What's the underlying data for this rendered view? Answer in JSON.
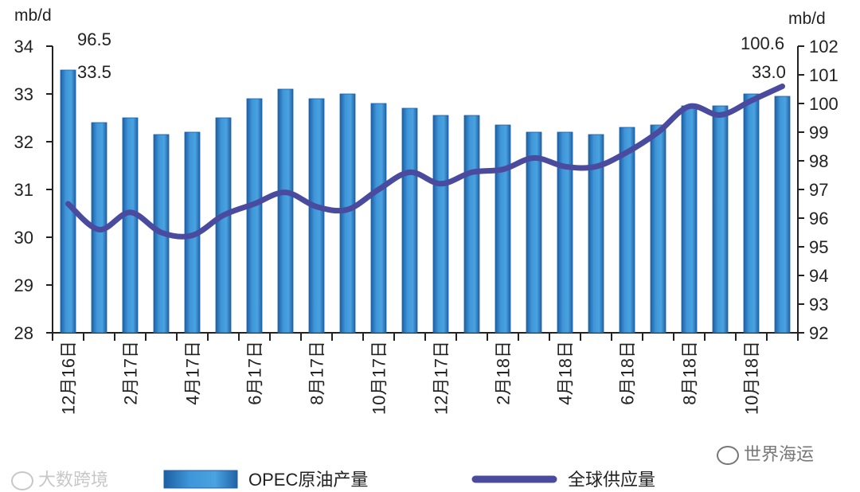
{
  "chart_data": {
    "type": "bar",
    "y_left_unit": "mb/d",
    "y_right_unit": "mb/d",
    "y_left_lim": [
      28,
      34
    ],
    "y_left_ticks": [
      "28",
      "29",
      "30",
      "31",
      "32",
      "33",
      "34"
    ],
    "y_right_lim": [
      92,
      102
    ],
    "y_right_ticks": [
      "92",
      "93",
      "94",
      "95",
      "96",
      "97",
      "98",
      "99",
      "100",
      "101",
      "102"
    ],
    "x_tick_labels": [
      "12月16日",
      "2月17日",
      "4月17日",
      "6月17日",
      "8月17日",
      "10月17日",
      "12月17日",
      "2月18日",
      "4月18日",
      "6月18日",
      "8月18日",
      "10月18日"
    ],
    "categories": [
      "12/16",
      "1/17",
      "2/17",
      "3/17",
      "4/17",
      "5/17",
      "6/17",
      "7/17",
      "8/17",
      "9/17",
      "10/17",
      "11/17",
      "12/17",
      "1/18",
      "2/18",
      "3/18",
      "4/18",
      "5/18",
      "6/18",
      "7/18",
      "8/18",
      "9/18",
      "10/18",
      "11/18"
    ],
    "series": [
      {
        "name": "OPEC原油产量",
        "type": "bar",
        "axis": "left",
        "color": "#3a8fd4",
        "values": [
          33.5,
          32.4,
          32.5,
          32.15,
          32.2,
          32.5,
          32.9,
          33.1,
          32.9,
          33.0,
          32.8,
          32.7,
          32.55,
          32.55,
          32.35,
          32.2,
          32.2,
          32.15,
          32.3,
          32.35,
          32.75,
          32.75,
          33.0,
          32.95
        ]
      },
      {
        "name": "全球供应量",
        "type": "line",
        "axis": "right",
        "color": "#4a4a9e",
        "values": [
          96.5,
          95.6,
          96.2,
          95.5,
          95.4,
          96.1,
          96.5,
          96.9,
          96.4,
          96.3,
          97.0,
          97.6,
          97.2,
          97.6,
          97.7,
          98.1,
          97.8,
          97.8,
          98.3,
          99.0,
          99.9,
          99.6,
          100.1,
          100.6
        ]
      }
    ],
    "annotations": {
      "first_line_value": "96.5",
      "first_bar_value": "33.5",
      "last_line_value": "100.6",
      "last_bar_value": "33.0"
    },
    "legend": {
      "position": "bottom"
    },
    "grid": false
  },
  "watermarks": {
    "left": "大数跨境",
    "right": "世界海运"
  }
}
